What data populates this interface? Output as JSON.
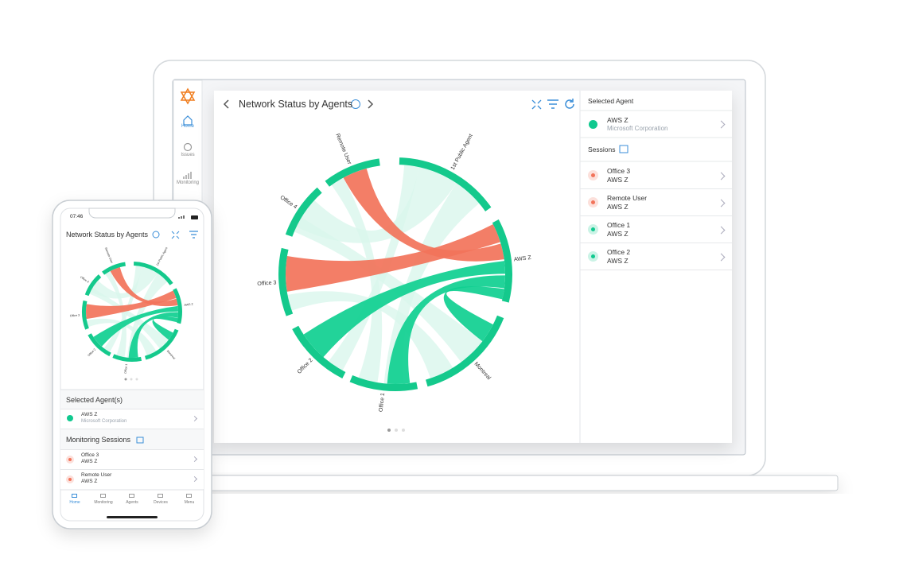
{
  "desktop": {
    "nav": [
      "Home",
      "Issues",
      "Monitoring"
    ],
    "panel_title": "Network Status by Agents",
    "chord_labels": [
      "1st Public Agent",
      "AWS Z",
      "Montreal",
      "Office 1",
      "Office 2",
      "Office 3",
      "Office 4",
      "Remote User"
    ],
    "selected_agent": {
      "heading": "Selected Agent",
      "name": "AWS Z",
      "org": "Microsoft Corporation"
    },
    "sessions": {
      "heading": "Sessions",
      "items": [
        {
          "name": "Office 3",
          "agent": "AWS Z",
          "color": "#f2735a"
        },
        {
          "name": "Remote User",
          "agent": "AWS Z",
          "color": "#f2735a"
        },
        {
          "name": "Office 1",
          "agent": "AWS Z",
          "color": "#10c98f"
        },
        {
          "name": "Office 2",
          "agent": "AWS Z",
          "color": "#10c98f"
        }
      ]
    }
  },
  "phone": {
    "time": "07:46",
    "panel_title": "Network Status by Agents",
    "chord_labels": [
      "1st Public Agent",
      "AWS Z",
      "Montreal",
      "Office 1",
      "Office 2",
      "Office 3",
      "Office 4",
      "Remote User"
    ],
    "selected_heading": "Selected Agent(s)",
    "agent": {
      "name": "AWS Z",
      "org": "Microsoft Corporation"
    },
    "sessions_heading": "Monitoring Sessions",
    "sessions": [
      {
        "name": "Office 3",
        "agent": "AWS Z",
        "color": "#f2735a"
      },
      {
        "name": "Remote User",
        "agent": "AWS Z",
        "color": "#f2735a"
      }
    ],
    "tabs": [
      "Home",
      "Monitoring",
      "Agents",
      "Devices",
      "Menu"
    ]
  }
}
